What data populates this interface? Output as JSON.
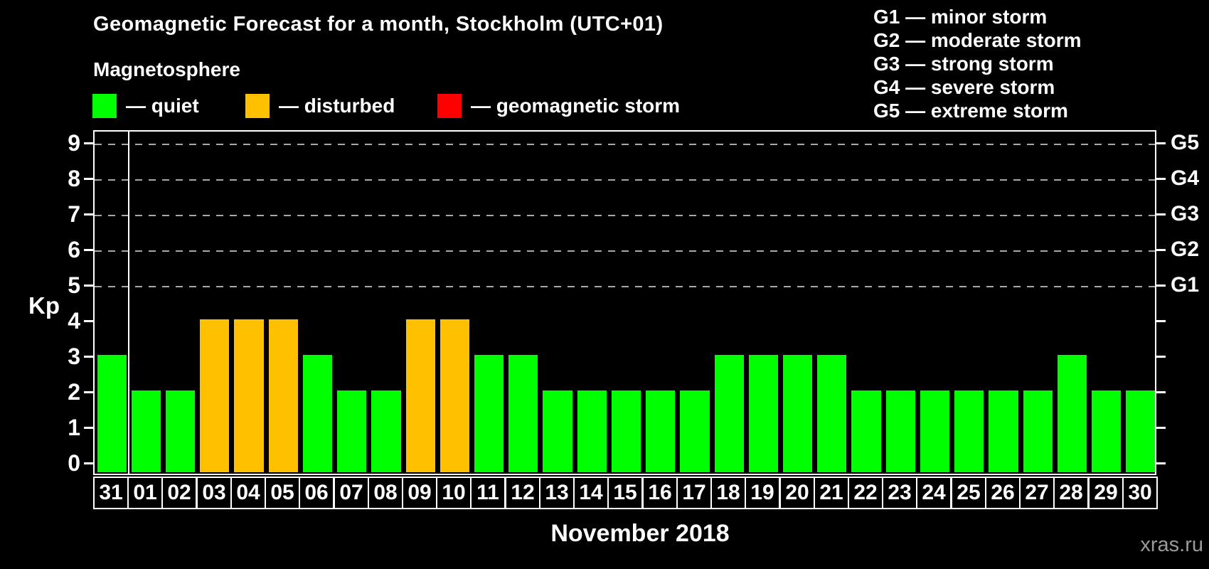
{
  "title": "Geomagnetic Forecast for a month, Stockholm (UTC+01)",
  "subtitle": "Magnetosphere",
  "status_legend": [
    {
      "name": "quiet",
      "label": "— quiet",
      "color": "#00ff00"
    },
    {
      "name": "disturbed",
      "label": "— disturbed",
      "color": "#ffc000"
    },
    {
      "name": "storm",
      "label": "— geomagnetic storm",
      "color": "#ff0000"
    }
  ],
  "storm_scale_legend": [
    {
      "code": "G1",
      "label": "G1 — minor storm"
    },
    {
      "code": "G2",
      "label": "G2 — moderate storm"
    },
    {
      "code": "G3",
      "label": "G3 — strong storm"
    },
    {
      "code": "G4",
      "label": "G4 — severe storm"
    },
    {
      "code": "G5",
      "label": "G5 — extreme storm"
    }
  ],
  "chart_data": {
    "type": "bar",
    "title": "Geomagnetic Forecast for a month, Stockholm (UTC+01)",
    "xlabel": "November 2018",
    "ylabel": "Kp",
    "ylim": [
      0,
      9
    ],
    "yticks": [
      0,
      1,
      2,
      3,
      4,
      5,
      6,
      7,
      8,
      9
    ],
    "gridlines_at": [
      5,
      6,
      7,
      8,
      9
    ],
    "grid": "dashed horizontal at storm levels only",
    "legend_position": "top",
    "right_axis": [
      {
        "kp": 5,
        "label": "G1"
      },
      {
        "kp": 6,
        "label": "G2"
      },
      {
        "kp": 7,
        "label": "G3"
      },
      {
        "kp": 8,
        "label": "G4"
      },
      {
        "kp": 9,
        "label": "G5"
      }
    ],
    "separator_after_index": 0,
    "categories": [
      "31",
      "01",
      "02",
      "03",
      "04",
      "05",
      "06",
      "07",
      "08",
      "09",
      "10",
      "11",
      "12",
      "13",
      "14",
      "15",
      "16",
      "17",
      "18",
      "19",
      "20",
      "21",
      "22",
      "23",
      "24",
      "25",
      "26",
      "27",
      "28",
      "29",
      "30"
    ],
    "values": [
      3,
      2,
      2,
      4,
      4,
      4,
      3,
      2,
      2,
      4,
      4,
      3,
      3,
      2,
      2,
      2,
      2,
      2,
      3,
      3,
      3,
      3,
      2,
      2,
      2,
      2,
      2,
      2,
      3,
      2,
      2
    ],
    "statuses": [
      "quiet",
      "quiet",
      "quiet",
      "disturbed",
      "disturbed",
      "disturbed",
      "quiet",
      "quiet",
      "quiet",
      "disturbed",
      "disturbed",
      "quiet",
      "quiet",
      "quiet",
      "quiet",
      "quiet",
      "quiet",
      "quiet",
      "quiet",
      "quiet",
      "quiet",
      "quiet",
      "quiet",
      "quiet",
      "quiet",
      "quiet",
      "quiet",
      "quiet",
      "quiet",
      "quiet",
      "quiet"
    ],
    "colors": {
      "quiet": "#00ff00",
      "disturbed": "#ffc000",
      "storm": "#ff0000"
    }
  },
  "footer": {
    "month_label": "November 2018",
    "watermark": "xras.ru"
  }
}
